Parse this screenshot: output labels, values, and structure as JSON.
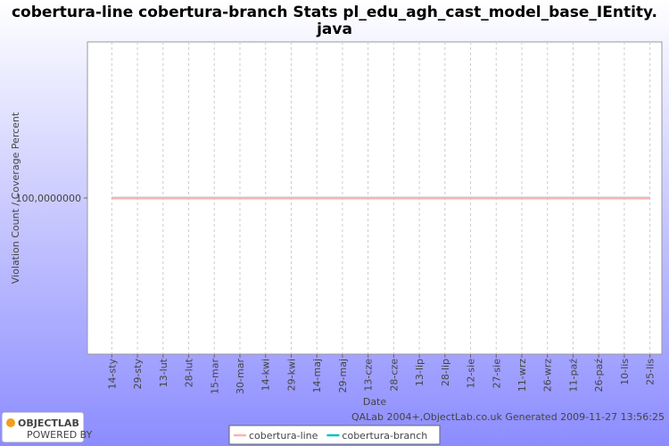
{
  "chart_data": {
    "type": "line",
    "title_lines": [
      "cobertura-line cobertura-branch  Stats pl_edu_agh_cast_model_base_IEntity.",
      "java"
    ],
    "xlabel": "Date",
    "ylabel": "Violation Count / Coverage Percent",
    "categories": [
      "14-sty",
      "29-sty",
      "13-lut",
      "28-lut",
      "15-mar",
      "30-mar",
      "14-kwi",
      "29-kwi",
      "14-maj",
      "29-maj",
      "13-cze",
      "28-cze",
      "13-lip",
      "28-lip",
      "12-sie",
      "27-sie",
      "11-wrz",
      "26-wrz",
      "11-paź",
      "26-paź",
      "10-lis",
      "25-lis"
    ],
    "series": [
      {
        "name": "cobertura-line",
        "color": "#ffb0b0",
        "values": [
          100,
          100,
          100,
          100,
          100,
          100,
          100,
          100,
          100,
          100,
          100,
          100,
          100,
          100,
          100,
          100,
          100,
          100,
          100,
          100,
          100,
          100
        ]
      },
      {
        "name": "cobertura-branch",
        "color": "#00c0c0",
        "values": [
          100,
          100,
          100,
          100,
          100,
          100,
          100,
          100,
          100,
          100,
          100,
          100,
          100,
          100,
          100,
          100,
          100,
          100,
          100,
          100,
          100,
          100
        ]
      }
    ],
    "ylim": [
      99,
      101
    ],
    "yticks": [
      {
        "value": 100,
        "label": "100,0000000"
      }
    ],
    "grid": true,
    "footer": "QALab 2004+,ObjectLab.co.uk Generated 2009-11-27 13:56:25",
    "logo": {
      "name": "OBJECTLAB",
      "tagline": "POWERED BY"
    }
  }
}
